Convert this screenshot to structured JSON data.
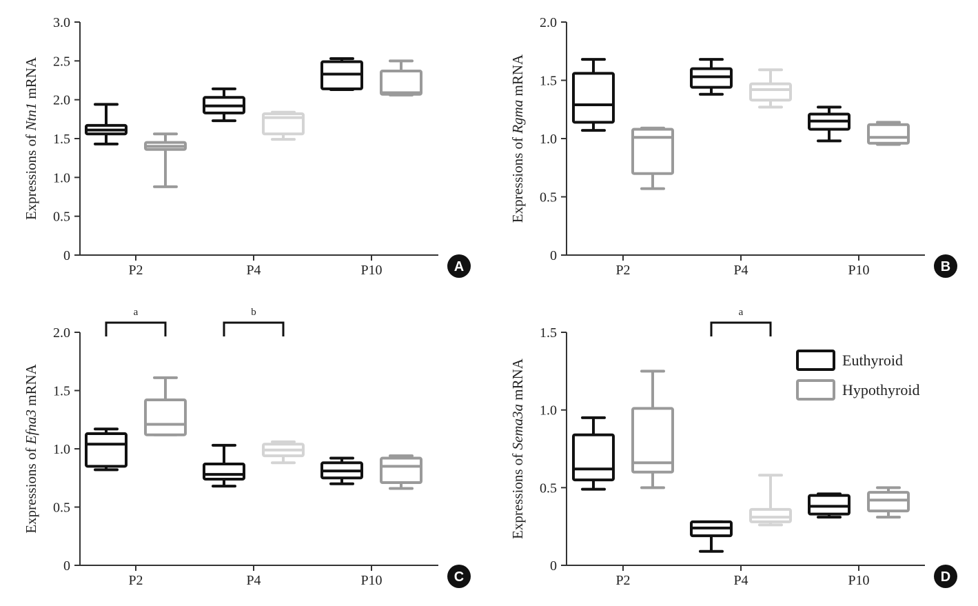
{
  "colors": {
    "euthyroid": "#111111",
    "hypothyroid_dark": "#9a9a9a",
    "hypothyroid_light": "#d4d4d4",
    "axis": "#333333",
    "badge": "#111111"
  },
  "legend": {
    "entries": [
      {
        "label": "Euthyroid",
        "color": "#111111"
      },
      {
        "label": "Hypothyroid",
        "color": "#9a9a9a"
      }
    ]
  },
  "chart_data": [
    {
      "type": "box",
      "panel": "A",
      "ylabel_prefix": "Expressions of ",
      "ylabel_gene": "Ntn1",
      "ylabel_suffix": " mRNA",
      "categories": [
        "P2",
        "P4",
        "P10"
      ],
      "ylim": [
        0,
        3.0
      ],
      "yticks": [
        0,
        0.5,
        1.0,
        1.5,
        2.0,
        2.5,
        3.0
      ],
      "ytick_labels": [
        "0",
        "0.5",
        "1.0",
        "1.5",
        "2.0",
        "2.5",
        "3.0"
      ],
      "series": [
        {
          "name": "Euthyroid",
          "boxes": [
            {
              "min": 1.43,
              "q1": 1.56,
              "median": 1.61,
              "q3": 1.67,
              "max": 1.94,
              "color": "#111111"
            },
            {
              "min": 1.73,
              "q1": 1.83,
              "median": 1.92,
              "q3": 2.03,
              "max": 2.14,
              "color": "#111111"
            },
            {
              "min": 2.13,
              "q1": 2.14,
              "median": 2.33,
              "q3": 2.49,
              "max": 2.53,
              "color": "#111111"
            }
          ]
        },
        {
          "name": "Hypothyroid",
          "boxes": [
            {
              "min": 0.88,
              "q1": 1.36,
              "median": 1.4,
              "q3": 1.45,
              "max": 1.56,
              "color": "#9a9a9a"
            },
            {
              "min": 1.49,
              "q1": 1.56,
              "median": 1.77,
              "q3": 1.82,
              "max": 1.84,
              "color": "#d4d4d4"
            },
            {
              "min": 2.06,
              "q1": 2.07,
              "median": 2.09,
              "q3": 2.37,
              "max": 2.5,
              "color": "#9a9a9a"
            }
          ]
        }
      ],
      "annotations": []
    },
    {
      "type": "box",
      "panel": "B",
      "ylabel_prefix": "Expressions of ",
      "ylabel_gene": "Rgma",
      "ylabel_suffix": " mRNA",
      "categories": [
        "P2",
        "P4",
        "P10"
      ],
      "ylim": [
        0,
        2.0
      ],
      "yticks": [
        0,
        0.5,
        1.0,
        1.5,
        2.0
      ],
      "ytick_labels": [
        "0",
        "0.5",
        "1.0",
        "1.5",
        "2.0"
      ],
      "series": [
        {
          "name": "Euthyroid",
          "boxes": [
            {
              "min": 1.07,
              "q1": 1.14,
              "median": 1.29,
              "q3": 1.56,
              "max": 1.68,
              "color": "#111111"
            },
            {
              "min": 1.38,
              "q1": 1.44,
              "median": 1.53,
              "q3": 1.6,
              "max": 1.68,
              "color": "#111111"
            },
            {
              "min": 0.98,
              "q1": 1.08,
              "median": 1.15,
              "q3": 1.21,
              "max": 1.27,
              "color": "#111111"
            }
          ]
        },
        {
          "name": "Hypothyroid",
          "boxes": [
            {
              "min": 0.57,
              "q1": 0.7,
              "median": 1.01,
              "q3": 1.08,
              "max": 1.09,
              "color": "#9a9a9a"
            },
            {
              "min": 1.27,
              "q1": 1.33,
              "median": 1.42,
              "q3": 1.47,
              "max": 1.59,
              "color": "#d4d4d4"
            },
            {
              "min": 0.95,
              "q1": 0.96,
              "median": 1.01,
              "q3": 1.12,
              "max": 1.14,
              "color": "#9a9a9a"
            }
          ]
        }
      ],
      "annotations": []
    },
    {
      "type": "box",
      "panel": "C",
      "ylabel_prefix": "Expressions of ",
      "ylabel_gene": "Efna3",
      "ylabel_suffix": " mRNA",
      "categories": [
        "P2",
        "P4",
        "P10"
      ],
      "ylim": [
        0,
        2.0
      ],
      "yticks": [
        0,
        0.5,
        1.0,
        1.5,
        2.0
      ],
      "ytick_labels": [
        "0",
        "0.5",
        "1.0",
        "1.5",
        "2.0"
      ],
      "series": [
        {
          "name": "Euthyroid",
          "boxes": [
            {
              "min": 0.82,
              "q1": 0.85,
              "median": 1.04,
              "q3": 1.13,
              "max": 1.17,
              "color": "#111111"
            },
            {
              "min": 0.68,
              "q1": 0.74,
              "median": 0.78,
              "q3": 0.87,
              "max": 1.03,
              "color": "#111111"
            },
            {
              "min": 0.7,
              "q1": 0.75,
              "median": 0.81,
              "q3": 0.88,
              "max": 0.92,
              "color": "#111111"
            }
          ]
        },
        {
          "name": "Hypothyroid",
          "boxes": [
            {
              "min": 1.12,
              "q1": 1.12,
              "median": 1.21,
              "q3": 1.42,
              "max": 1.61,
              "color": "#9a9a9a"
            },
            {
              "min": 0.88,
              "q1": 0.94,
              "median": 0.99,
              "q3": 1.04,
              "max": 1.06,
              "color": "#d4d4d4"
            },
            {
              "min": 0.66,
              "q1": 0.71,
              "median": 0.85,
              "q3": 0.92,
              "max": 0.94,
              "color": "#9a9a9a"
            }
          ]
        }
      ],
      "annotations": [
        {
          "category": 0,
          "label": "a"
        },
        {
          "category": 1,
          "label": "b"
        }
      ]
    },
    {
      "type": "box",
      "panel": "D",
      "ylabel_prefix": "Expressions of ",
      "ylabel_gene": "Sema3a",
      "ylabel_suffix": " mRNA",
      "categories": [
        "P2",
        "P4",
        "P10"
      ],
      "ylim": [
        0,
        1.5
      ],
      "yticks": [
        0,
        0.5,
        1.0,
        1.5
      ],
      "ytick_labels": [
        "0",
        "0.5",
        "1.0",
        "1.5"
      ],
      "series": [
        {
          "name": "Euthyroid",
          "boxes": [
            {
              "min": 0.49,
              "q1": 0.55,
              "median": 0.62,
              "q3": 0.84,
              "max": 0.95,
              "color": "#111111"
            },
            {
              "min": 0.09,
              "q1": 0.19,
              "median": 0.24,
              "q3": 0.28,
              "max": 0.28,
              "color": "#111111"
            },
            {
              "min": 0.31,
              "q1": 0.33,
              "median": 0.38,
              "q3": 0.45,
              "max": 0.46,
              "color": "#111111"
            }
          ]
        },
        {
          "name": "Hypothyroid",
          "boxes": [
            {
              "min": 0.5,
              "q1": 0.6,
              "median": 0.66,
              "q3": 1.01,
              "max": 1.25,
              "color": "#9a9a9a"
            },
            {
              "min": 0.26,
              "q1": 0.28,
              "median": 0.31,
              "q3": 0.36,
              "max": 0.58,
              "color": "#d4d4d4"
            },
            {
              "min": 0.31,
              "q1": 0.35,
              "median": 0.42,
              "q3": 0.47,
              "max": 0.5,
              "color": "#9a9a9a"
            }
          ]
        }
      ],
      "annotations": [
        {
          "category": 1,
          "label": "a"
        }
      ]
    }
  ]
}
